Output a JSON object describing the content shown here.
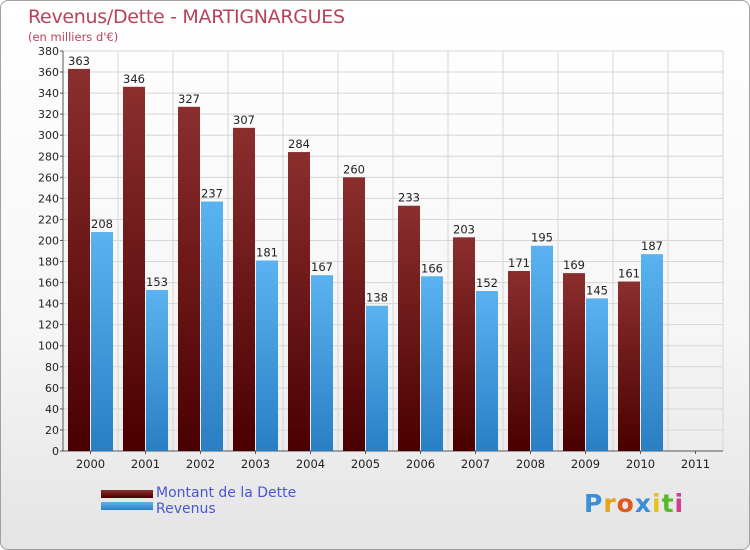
{
  "header": {
    "title": "Revenus/Dette - MARTIGNARGUES",
    "subtitle": "(en milliers d'€)"
  },
  "chart_data": {
    "type": "bar",
    "title": "Revenus/Dette - MARTIGNARGUES",
    "subtitle": "(en milliers d'€)",
    "categories": [
      "2000",
      "2001",
      "2002",
      "2003",
      "2004",
      "2005",
      "2006",
      "2007",
      "2008",
      "2009",
      "2010",
      "2011"
    ],
    "series": [
      {
        "name": "Montant de la Dette",
        "color": "#7a1414",
        "values": [
          363,
          346,
          327,
          307,
          284,
          260,
          233,
          203,
          171,
          169,
          161,
          null
        ]
      },
      {
        "name": "Revenus",
        "color": "#4aa3e6",
        "values": [
          208,
          153,
          237,
          181,
          167,
          138,
          166,
          152,
          195,
          145,
          187,
          null
        ]
      }
    ],
    "ylim": [
      0,
      380
    ],
    "yticks": [
      0,
      20,
      40,
      60,
      80,
      100,
      120,
      140,
      160,
      180,
      200,
      220,
      240,
      260,
      280,
      300,
      320,
      340,
      360,
      380
    ],
    "grid": true,
    "legend": "bottom-left"
  },
  "legend": {
    "items": [
      {
        "label": "Montant de la Dette",
        "color": "#6a0d0d"
      },
      {
        "label": "Revenus",
        "color": "#3d9be0"
      }
    ]
  },
  "logo": {
    "text": "Proxiti",
    "letters": [
      {
        "ch": "P",
        "color": "#3a8fd8"
      },
      {
        "ch": "r",
        "color": "#e8a21c"
      },
      {
        "ch": "o",
        "color": "#e05a1c"
      },
      {
        "ch": "x",
        "color": "#3a8fd8"
      },
      {
        "ch": "i",
        "color": "#e8c21c"
      },
      {
        "ch": "t",
        "color": "#5ab82a"
      },
      {
        "ch": "i",
        "color": "#d23c8c"
      }
    ]
  }
}
